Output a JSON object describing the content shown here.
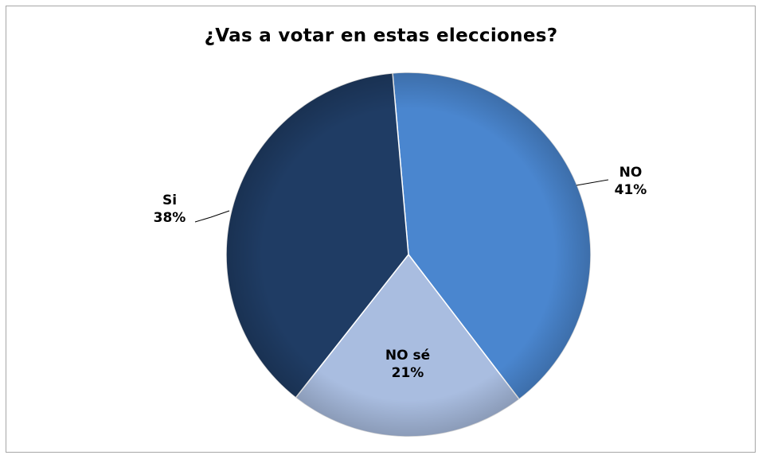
{
  "chart_data": {
    "type": "pie",
    "title": "¿Vas a votar en estas elecciones?",
    "slices": [
      {
        "label": "NO",
        "value": 41,
        "value_label": "41%",
        "color": "#4a86cf",
        "label_position": "right"
      },
      {
        "label": "NO sé",
        "value": 21,
        "value_label": "21%",
        "color": "#a9bde0",
        "label_position": "inside-bottom"
      },
      {
        "label": "Si",
        "value": 38,
        "value_label": "38%",
        "color": "#1f3c64",
        "label_position": "left"
      }
    ],
    "legend": "none"
  }
}
